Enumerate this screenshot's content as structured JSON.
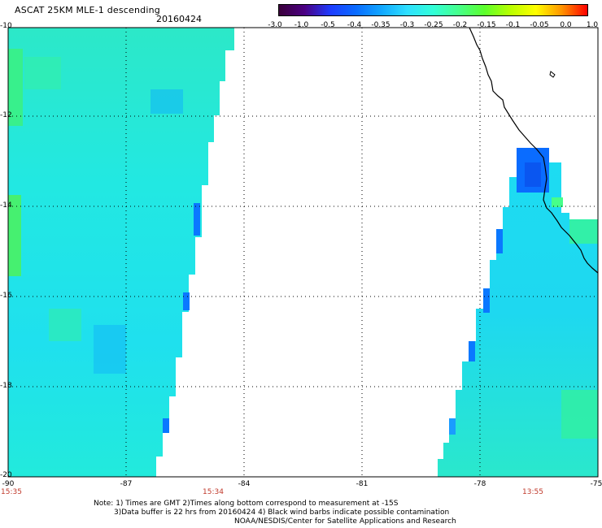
{
  "header": {
    "title": "ASCAT 25KM MLE-1 descending",
    "date": "20160424"
  },
  "colorbar": {
    "labels": [
      "-3.0",
      "-1.0",
      "-0.5",
      "-0.4",
      "-0.35",
      "-0.3",
      "-0.25",
      "-0.2",
      "-0.15",
      "-0.1",
      "-0.05",
      "0.0",
      "1.0"
    ],
    "colors": [
      "#3a003a",
      "#4b0082",
      "#1e3cff",
      "#0a6cff",
      "#12a8ff",
      "#2fe0ff",
      "#32ffd8",
      "#46ff8a",
      "#5cff2c",
      "#b8ff00",
      "#ffff00",
      "#ff9400",
      "#ff0000"
    ]
  },
  "map": {
    "lat_labels": [
      "-10",
      "-12",
      "-14",
      "-16",
      "-18",
      "-20"
    ],
    "lon_labels": [
      "-90",
      "-87",
      "-84",
      "-81",
      "-78",
      "-75"
    ],
    "lat_range": [
      -20,
      -10
    ],
    "lon_range": [
      -90,
      -75
    ],
    "time_labels": [
      {
        "text": "15:35",
        "lon": -90
      },
      {
        "text": "15:34",
        "lon": -85.4
      },
      {
        "text": "13:55",
        "lon": -76.6
      }
    ],
    "grid": "dotted",
    "land_color": "#ffffff",
    "coastline_color": "#000000"
  },
  "notes": {
    "line1": "Note: 1) Times are GMT 2)Times along bottom correspond to measurement at -15S",
    "line2": "3)Data buffer is 22 hrs from 20160424 4) Black wind barbs indicate possible contamination",
    "line3": "NOAA/NESDIS/Center for Satellite Applications and Research"
  }
}
